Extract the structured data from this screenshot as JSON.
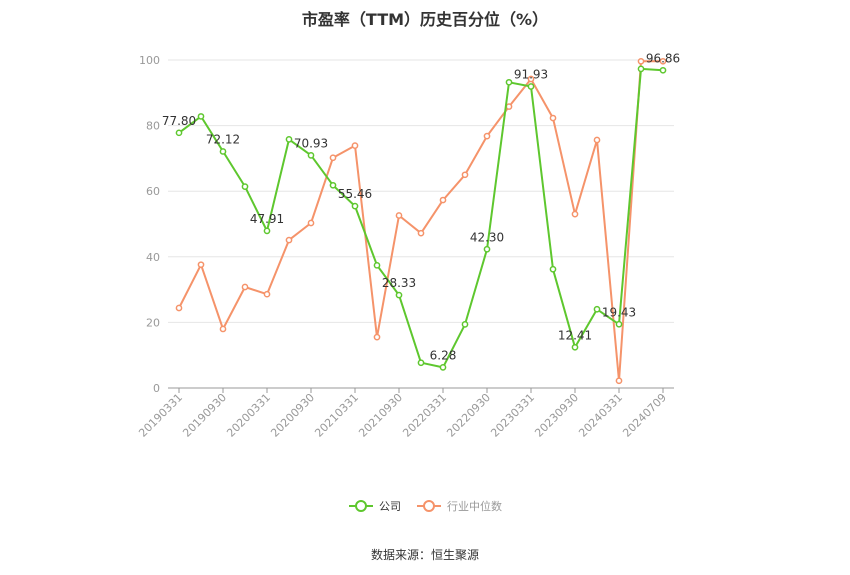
{
  "chart_data": {
    "type": "line",
    "title": "市盈率（TTM）历史百分位（%）",
    "source": "数据来源：恒生聚源",
    "ylim": [
      0,
      100
    ],
    "yticks": [
      0,
      20,
      40,
      60,
      80,
      100
    ],
    "grid": true,
    "legend_position": "bottom",
    "x": [
      "20190331",
      "20190630",
      "20190930",
      "20191231",
      "20200331",
      "20200630",
      "20200930",
      "20201231",
      "20210331",
      "20210630",
      "20210930",
      "20211231",
      "20220331",
      "20220630",
      "20220930",
      "20221231",
      "20230331",
      "20230630",
      "20230930",
      "20231231",
      "20240331",
      "20240630",
      "20240709"
    ],
    "xtick_labels": [
      "20190331",
      "20190930",
      "20200331",
      "20200930",
      "20210331",
      "20210930",
      "20220331",
      "20220930",
      "20230331",
      "20230930",
      "20240331",
      "20240709"
    ],
    "series": [
      {
        "name": "公司",
        "color": "#5ec72e",
        "values": [
          77.8,
          82.8,
          72.12,
          61.4,
          47.91,
          75.8,
          70.93,
          61.8,
          55.46,
          37.4,
          28.33,
          7.7,
          6.28,
          19.4,
          42.3,
          93.2,
          91.93,
          36.2,
          12.41,
          24.0,
          19.43,
          97.3,
          96.86
        ],
        "labels": [
          "77.80",
          null,
          "72.12",
          null,
          "47.91",
          null,
          "70.93",
          null,
          "55.46",
          null,
          "28.33",
          null,
          "6.28",
          null,
          "42.30",
          null,
          "91.93",
          null,
          "12.41",
          null,
          "19.43",
          null,
          "96.86"
        ]
      },
      {
        "name": "行业中位数",
        "color": "#f5936a",
        "values": [
          24.4,
          37.6,
          18.0,
          30.8,
          28.6,
          45.1,
          50.3,
          70.2,
          73.9,
          15.5,
          52.6,
          47.2,
          57.3,
          65.0,
          76.8,
          85.8,
          94.2,
          82.3,
          53.0,
          75.6,
          2.2,
          99.6,
          99.6
        ]
      }
    ]
  }
}
